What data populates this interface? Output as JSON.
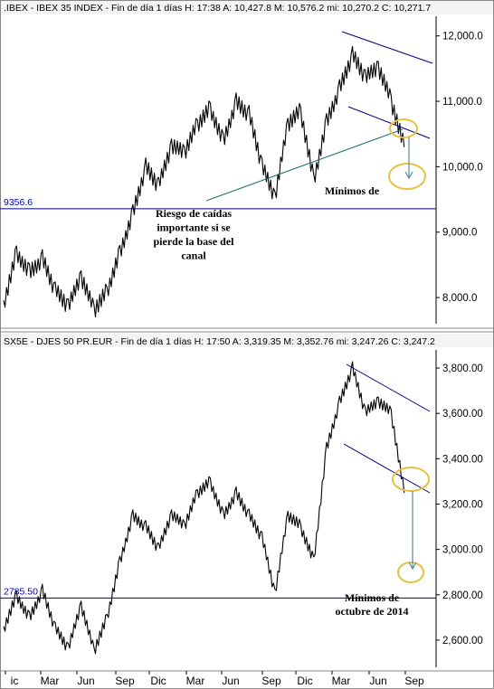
{
  "chart_data": [
    {
      "type": "line",
      "header": ".IBEX - IBEX 35 INDEX - Fin de día 1 días  H: 17:38  A: 10,427.8  M: 10,576.2  mi: 10,270.2  C: 10,271.7",
      "ylim": [
        7600,
        12300
      ],
      "yticks": [
        8000,
        9000,
        10000,
        11000,
        12000
      ],
      "ytick_labels": [
        "8,000.0",
        "9,000.0",
        "10,000.0",
        "11,000.0",
        "12,000.0"
      ],
      "support_level": 9356.6,
      "support_label": "9356.6",
      "annotation_left": [
        "Riesgo de caídas",
        "importante si se",
        "pierde la base del",
        "canal"
      ],
      "annotation_right": [
        "Mínimos de"
      ],
      "x": [
        0,
        0.03,
        0.06,
        0.09,
        0.12,
        0.15,
        0.18,
        0.21,
        0.24,
        0.27,
        0.3,
        0.33,
        0.36,
        0.39,
        0.42,
        0.45,
        0.48,
        0.51,
        0.54,
        0.57,
        0.6,
        0.63,
        0.66,
        0.69,
        0.72,
        0.75,
        0.78,
        0.81,
        0.84,
        0.87,
        0.9,
        0.93
      ],
      "values": [
        7900,
        8700,
        8400,
        8600,
        8100,
        7850,
        8300,
        7800,
        8100,
        8700,
        9300,
        10000,
        9700,
        10300,
        10200,
        10650,
        10900,
        10400,
        11000,
        10800,
        10000,
        9500,
        10650,
        10850,
        9800,
        10700,
        11200,
        11700,
        11350,
        11500,
        11000,
        10300
      ]
    },
    {
      "type": "line",
      "header": "SX5E - DJES 50 PR.EUR - Fin de día 1 días  H: 17:50  A: 3,319.35  M: 3,352.76  mi: 3,247.26  C: 3,247.2",
      "ylim": [
        2480,
        3880
      ],
      "yticks": [
        2600,
        2800,
        3000,
        3200,
        3400,
        3600,
        3800
      ],
      "ytick_labels": [
        "2,600.00",
        "2,800.00",
        "3,000.00",
        "3,200.00",
        "3,400.00",
        "3,600.00",
        "3,800.00"
      ],
      "support_level": 2785.5,
      "support_label": "2785.50",
      "annotation_right": [
        "Mínimos de",
        "octubre de 2014"
      ],
      "x_labels": [
        "ic",
        "Mar",
        "Jun",
        "Sep",
        "Dic",
        "Mar",
        "Jun",
        "Sep",
        "Dic",
        "Mar",
        "Jun",
        "Sep"
      ],
      "x": [
        0,
        0.03,
        0.06,
        0.09,
        0.12,
        0.15,
        0.18,
        0.21,
        0.24,
        0.27,
        0.3,
        0.33,
        0.36,
        0.39,
        0.42,
        0.45,
        0.48,
        0.51,
        0.54,
        0.57,
        0.6,
        0.63,
        0.66,
        0.69,
        0.72,
        0.75,
        0.78,
        0.81,
        0.84,
        0.87,
        0.9,
        0.93
      ],
      "values": [
        2650,
        2800,
        2700,
        2820,
        2650,
        2560,
        2750,
        2550,
        2700,
        2950,
        3150,
        3100,
        3000,
        3150,
        3100,
        3250,
        3300,
        3150,
        3250,
        3150,
        3050,
        2800,
        3150,
        3100,
        2950,
        3450,
        3650,
        3800,
        3600,
        3650,
        3600,
        3250
      ]
    }
  ]
}
